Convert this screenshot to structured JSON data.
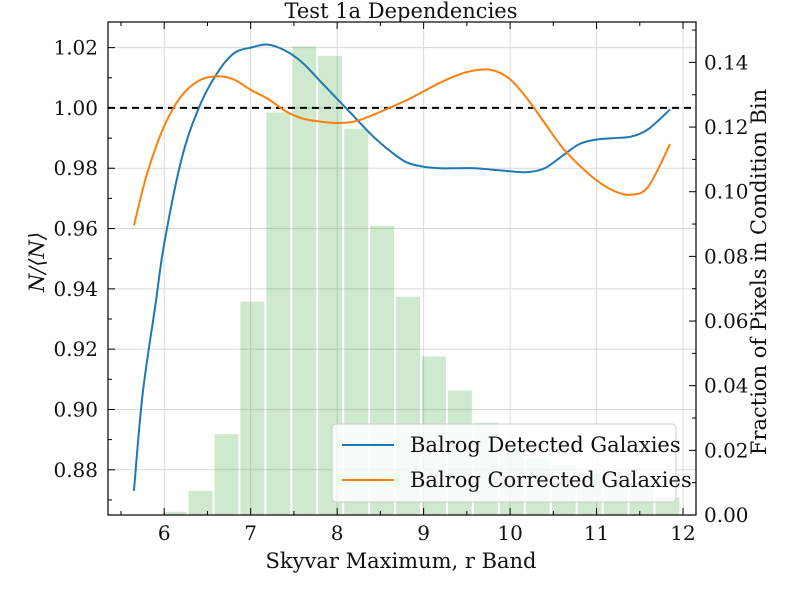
{
  "chart_data": {
    "type": "line",
    "title": "Test 1a Dependencies",
    "xlabel": "Skyvar Maximum, r Band",
    "ylabel": "N/⟨N⟩",
    "y2label": "Fraction of Pixels in Condition Bin",
    "xlim": [
      5.35,
      12.15
    ],
    "ylim": [
      0.865,
      1.0285
    ],
    "y2lim": [
      0.0,
      0.1525
    ],
    "xticks": [
      "6",
      "7",
      "8",
      "9",
      "10",
      "11",
      "12"
    ],
    "yticks": [
      "0.88",
      "0.90",
      "0.92",
      "0.94",
      "0.96",
      "0.98",
      "1.00",
      "1.02"
    ],
    "y2ticks": [
      "0.00",
      "0.02",
      "0.04",
      "0.06",
      "0.08",
      "0.10",
      "0.12",
      "0.14"
    ],
    "reference_line": 1.0,
    "grid": true,
    "legend_position": "lower-right",
    "series": [
      {
        "name": "Balrog Detected Galaxies",
        "color": "#1f77b4",
        "x": [
          5.65,
          5.75,
          5.9,
          6.0,
          6.2,
          6.4,
          6.6,
          6.8,
          7.0,
          7.2,
          7.4,
          7.6,
          7.8,
          8.0,
          8.2,
          8.4,
          8.6,
          8.8,
          9.0,
          9.2,
          9.4,
          9.6,
          9.8,
          10.0,
          10.2,
          10.4,
          10.6,
          10.8,
          11.0,
          11.2,
          11.4,
          11.6,
          11.85
        ],
        "y": [
          0.873,
          0.905,
          0.935,
          0.955,
          0.983,
          1.0,
          1.011,
          1.018,
          1.02,
          1.021,
          1.019,
          1.015,
          1.009,
          1.003,
          0.997,
          0.991,
          0.986,
          0.982,
          0.9805,
          0.98,
          0.98,
          0.98,
          0.9795,
          0.979,
          0.9787,
          0.98,
          0.984,
          0.988,
          0.9895,
          0.99,
          0.9905,
          0.993,
          0.9995
        ]
      },
      {
        "name": "Balrog Corrected Galaxies",
        "color": "#ff7f0e",
        "x": [
          5.65,
          5.8,
          6.0,
          6.2,
          6.4,
          6.6,
          6.8,
          7.0,
          7.2,
          7.4,
          7.6,
          7.8,
          8.0,
          8.2,
          8.4,
          8.6,
          8.8,
          9.0,
          9.2,
          9.4,
          9.6,
          9.8,
          10.0,
          10.2,
          10.4,
          10.6,
          10.8,
          11.0,
          11.2,
          11.4,
          11.6,
          11.85
        ],
        "y": [
          0.961,
          0.978,
          0.994,
          1.004,
          1.009,
          1.0105,
          1.0095,
          1.006,
          1.003,
          0.999,
          0.9965,
          0.9955,
          0.995,
          0.9955,
          0.9975,
          1.0,
          1.0025,
          1.0055,
          1.0085,
          1.011,
          1.0125,
          1.0125,
          1.0095,
          1.003,
          0.995,
          0.987,
          0.981,
          0.976,
          0.9725,
          0.9712,
          0.974,
          0.988
        ]
      }
    ],
    "histogram": {
      "color": "#2ca02c",
      "opacity": 0.23,
      "bin_width": 0.3,
      "centers": [
        5.82,
        6.12,
        6.42,
        6.72,
        7.02,
        7.32,
        7.62,
        7.92,
        8.22,
        8.52,
        8.82,
        9.12,
        9.42,
        9.72,
        10.02,
        10.32,
        10.62,
        10.92,
        11.22,
        11.52,
        11.82
      ],
      "fractions": [
        0.0,
        0.001,
        0.0075,
        0.025,
        0.066,
        0.1245,
        0.145,
        0.142,
        0.1195,
        0.0895,
        0.0675,
        0.049,
        0.0385,
        0.0285,
        0.0215,
        0.0175,
        0.0155,
        0.013,
        0.01,
        0.0085,
        0.0055
      ]
    }
  }
}
